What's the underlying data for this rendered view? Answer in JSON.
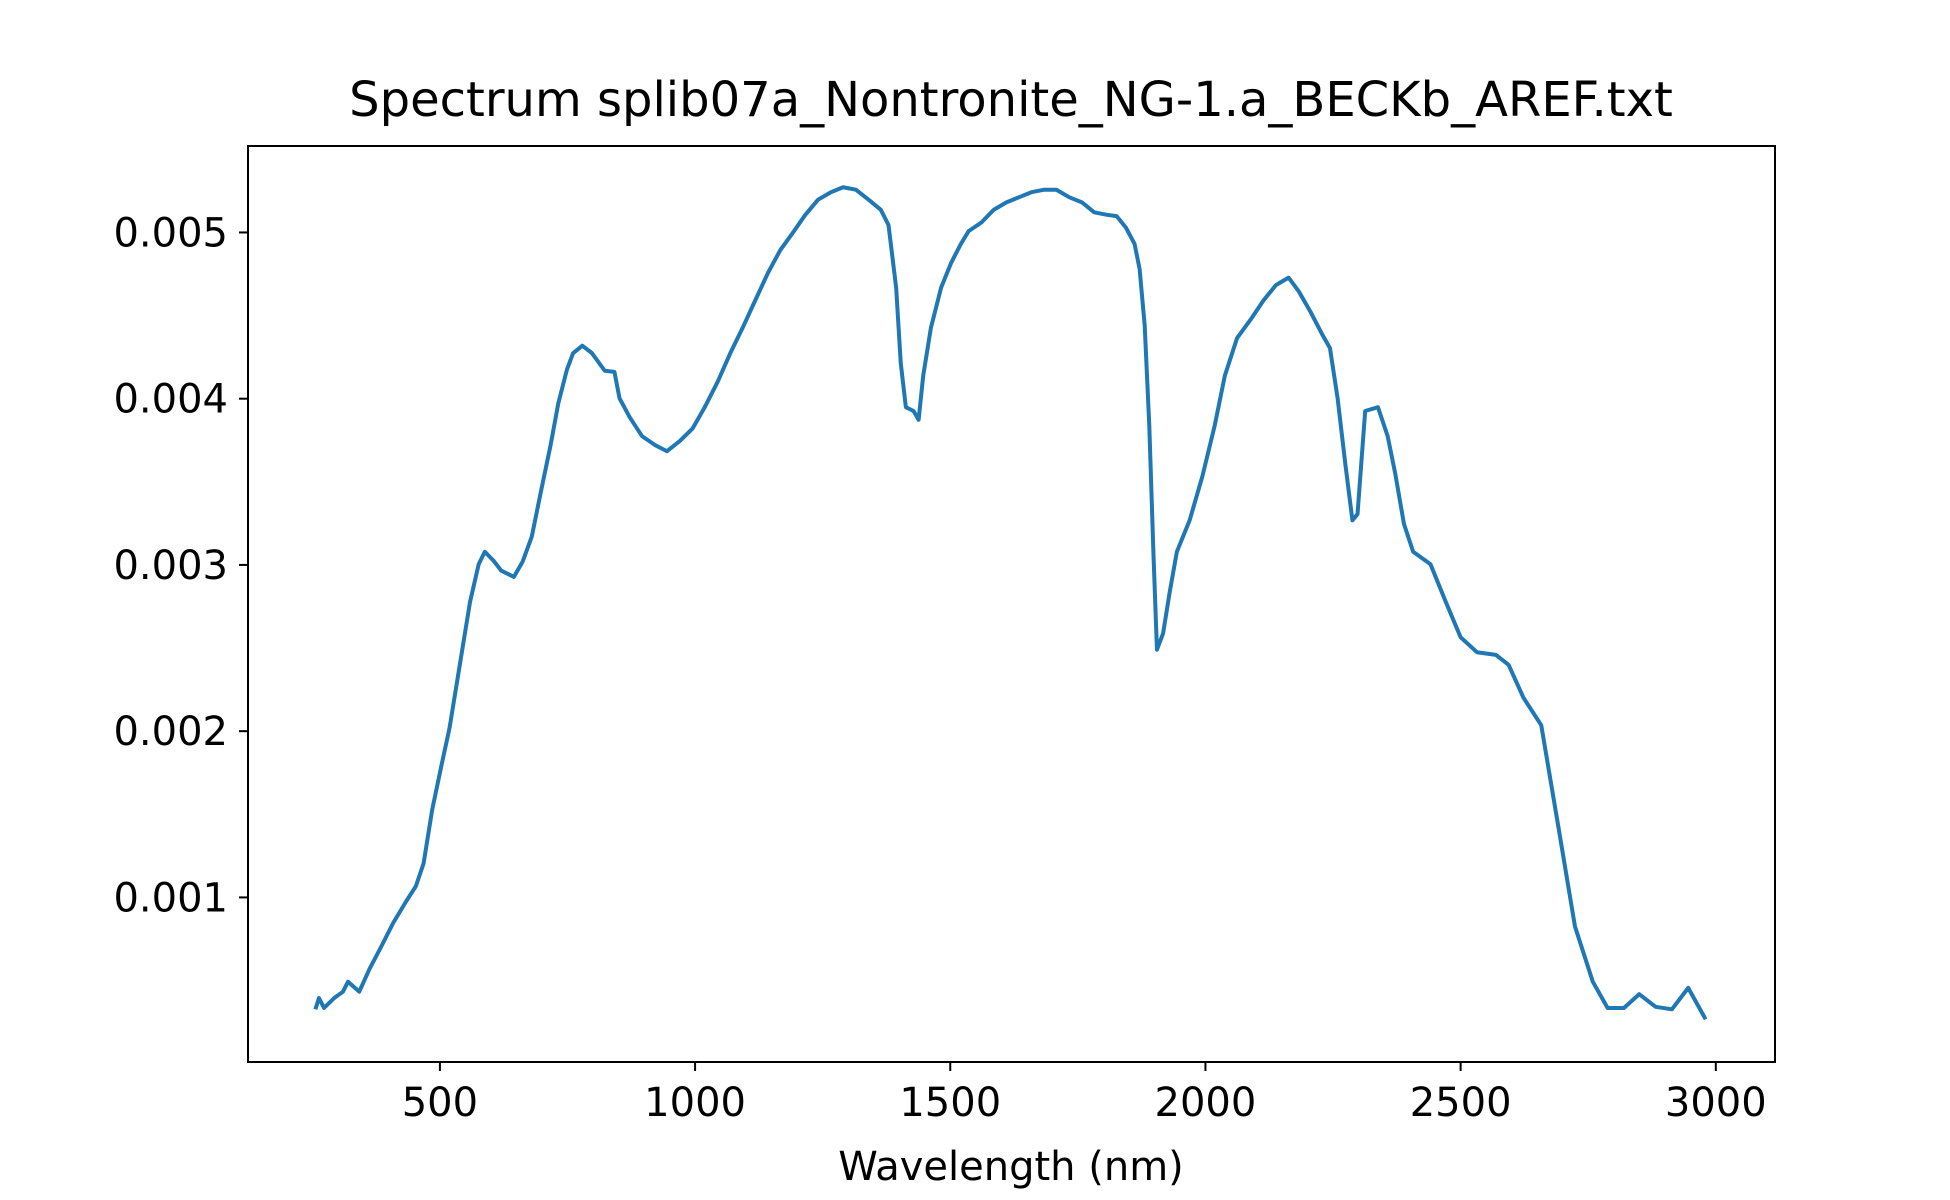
{
  "chart_data": {
    "type": "line",
    "title": "Spectrum splib07a_Nontronite_NG-1.a_BECKb_AREF.txt",
    "xlabel": "Wavelength (nm)",
    "color": "#1f77b4",
    "x": [
      256,
      263,
      273,
      293,
      310,
      320,
      342,
      362,
      384,
      409,
      434,
      453,
      468,
      485,
      502,
      519,
      539,
      559,
      576,
      588,
      605,
      620,
      645,
      662,
      680,
      699,
      717,
      732,
      749,
      761,
      779,
      798,
      823,
      842,
      852,
      872,
      896,
      921,
      945,
      970,
      995,
      1019,
      1044,
      1069,
      1093,
      1118,
      1143,
      1167,
      1192,
      1216,
      1241,
      1266,
      1290,
      1315,
      1340,
      1364,
      1379,
      1394,
      1403,
      1413,
      1428,
      1438,
      1447,
      1462,
      1482,
      1502,
      1521,
      1536,
      1561,
      1585,
      1610,
      1635,
      1659,
      1684,
      1708,
      1733,
      1758,
      1782,
      1807,
      1826,
      1844,
      1861,
      1871,
      1881,
      1890,
      1898,
      1905,
      1917,
      1930,
      1944,
      1969,
      1994,
      2018,
      2038,
      2062,
      2089,
      2114,
      2138,
      2163,
      2183,
      2207,
      2230,
      2244,
      2259,
      2274,
      2288,
      2298,
      2313,
      2338,
      2357,
      2372,
      2389,
      2407,
      2441,
      2471,
      2500,
      2532,
      2569,
      2594,
      2623,
      2658,
      2692,
      2724,
      2759,
      2788,
      2820,
      2850,
      2882,
      2914,
      2946,
      2980
    ],
    "values": [
      0.000327,
      0.000395,
      0.000335,
      0.000395,
      0.000433,
      0.000493,
      0.000433,
      0.000569,
      0.000698,
      0.000849,
      0.000977,
      0.001068,
      0.001204,
      0.001529,
      0.001779,
      0.002021,
      0.002399,
      0.002777,
      0.003004,
      0.003079,
      0.003026,
      0.002966,
      0.002928,
      0.003019,
      0.00317,
      0.003457,
      0.003722,
      0.003972,
      0.004176,
      0.004274,
      0.004319,
      0.004274,
      0.004168,
      0.004161,
      0.004002,
      0.003888,
      0.003775,
      0.003722,
      0.003684,
      0.003745,
      0.00382,
      0.003949,
      0.0041,
      0.004274,
      0.004425,
      0.004592,
      0.004758,
      0.004894,
      0.005,
      0.005106,
      0.005197,
      0.005242,
      0.005272,
      0.005257,
      0.005197,
      0.005136,
      0.005045,
      0.004667,
      0.004214,
      0.003949,
      0.003926,
      0.003873,
      0.004138,
      0.004425,
      0.004667,
      0.004819,
      0.004932,
      0.005008,
      0.00506,
      0.005136,
      0.005181,
      0.005212,
      0.005242,
      0.005257,
      0.005257,
      0.005212,
      0.005181,
      0.005121,
      0.005106,
      0.005098,
      0.00503,
      0.004932,
      0.004781,
      0.00444,
      0.003836,
      0.003079,
      0.00249,
      0.002588,
      0.002837,
      0.003079,
      0.003268,
      0.003533,
      0.003836,
      0.004138,
      0.004365,
      0.004478,
      0.004592,
      0.004683,
      0.004728,
      0.004645,
      0.004516,
      0.00438,
      0.004304,
      0.004002,
      0.003609,
      0.003268,
      0.003306,
      0.003926,
      0.003949,
      0.003775,
      0.003548,
      0.003246,
      0.003079,
      0.003004,
      0.002777,
      0.002565,
      0.002475,
      0.002459,
      0.002399,
      0.002202,
      0.002036,
      0.001416,
      0.000826,
      0.000493,
      0.000335,
      0.000335,
      0.000418,
      0.000342,
      0.000327,
      0.000456,
      0.000267
    ],
    "xlim": [
      124,
      3116
    ],
    "ylim": [
      1e-05,
      0.00552
    ],
    "xticks": [
      500,
      1000,
      1500,
      2000,
      2500,
      3000
    ],
    "yticks": [
      0.001,
      0.002,
      0.003,
      0.004,
      0.005
    ]
  }
}
